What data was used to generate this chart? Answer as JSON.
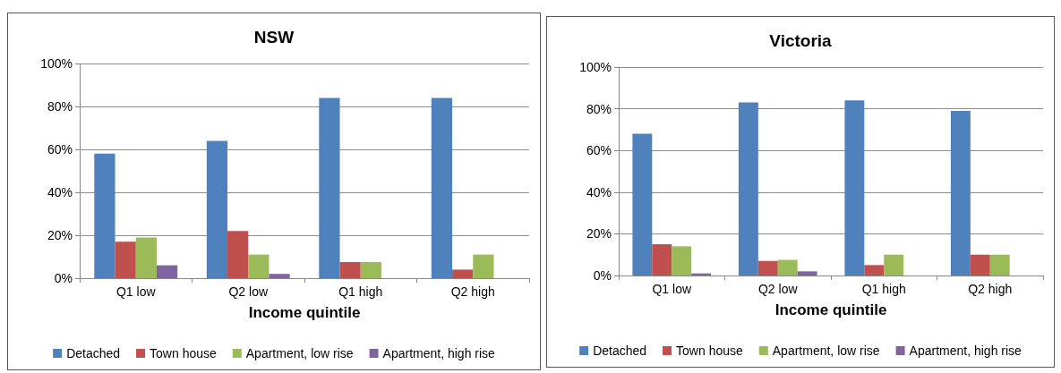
{
  "chart_data": [
    {
      "type": "bar",
      "title": "NSW",
      "xlabel": "Income quintile",
      "categories": [
        "Q1 low",
        "Q2 low",
        "Q1 high",
        "Q2 high"
      ],
      "series": [
        {
          "name": "Detached",
          "color": "#4f81bd",
          "values": [
            58,
            64,
            84,
            84
          ]
        },
        {
          "name": "Town house",
          "color": "#c0504d",
          "values": [
            17,
            22,
            7.5,
            4
          ]
        },
        {
          "name": "Apartment, low rise",
          "color": "#9bbb59",
          "values": [
            19,
            11,
            7.5,
            11
          ]
        },
        {
          "name": "Apartment, high rise",
          "color": "#8064a2",
          "values": [
            6,
            2,
            0,
            0
          ]
        }
      ],
      "ylim": [
        0,
        100
      ],
      "yticks": [
        {
          "value": 0,
          "label": "0%"
        },
        {
          "value": 20,
          "label": "20%"
        },
        {
          "value": 40,
          "label": "40%"
        },
        {
          "value": 60,
          "label": "60%"
        },
        {
          "value": 80,
          "label": "80%"
        },
        {
          "value": 100,
          "label": "100%"
        }
      ],
      "grid": "y",
      "legend": "bottom"
    },
    {
      "type": "bar",
      "title": "Victoria",
      "xlabel": "Income quintile",
      "categories": [
        "Q1 low",
        "Q2 low",
        "Q1 high",
        "Q2 high"
      ],
      "series": [
        {
          "name": "Detached",
          "color": "#4f81bd",
          "values": [
            68,
            83,
            84,
            79
          ]
        },
        {
          "name": "Town house",
          "color": "#c0504d",
          "values": [
            15,
            7,
            5,
            10
          ]
        },
        {
          "name": "Apartment, low rise",
          "color": "#9bbb59",
          "values": [
            14,
            7.5,
            10,
            10
          ]
        },
        {
          "name": "Apartment, high rise",
          "color": "#8064a2",
          "values": [
            1,
            2,
            0,
            0
          ]
        }
      ],
      "ylim": [
        0,
        100
      ],
      "yticks": [
        {
          "value": 0,
          "label": "0%"
        },
        {
          "value": 20,
          "label": "20%"
        },
        {
          "value": 40,
          "label": "40%"
        },
        {
          "value": 60,
          "label": "60%"
        },
        {
          "value": 80,
          "label": "80%"
        },
        {
          "value": 100,
          "label": "100%"
        }
      ],
      "grid": "y",
      "legend": "bottom"
    }
  ]
}
